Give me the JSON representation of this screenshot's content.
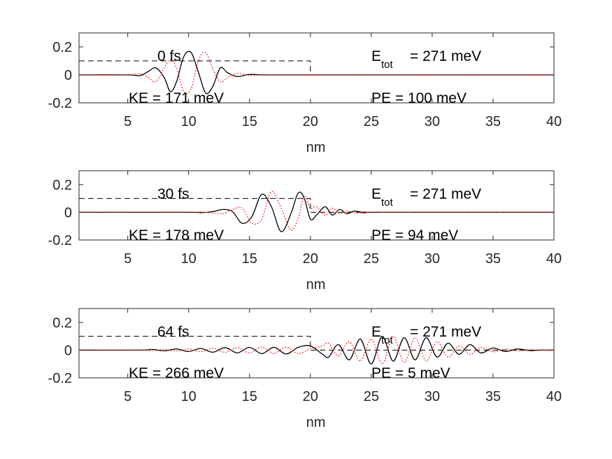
{
  "chart_data": [
    {
      "type": "line",
      "xlabel": "nm",
      "xlim": [
        1,
        40
      ],
      "ylim": [
        -0.2,
        0.3
      ],
      "xticks": [
        5,
        10,
        15,
        20,
        25,
        30,
        35,
        40
      ],
      "yticks": [
        0.2,
        0,
        -0.2
      ],
      "xtick_labels": [
        "5",
        "10",
        "15",
        "20",
        "25",
        "30",
        "35",
        "40"
      ],
      "ytick_labels": [
        "0.2",
        "0",
        "-0.2"
      ],
      "annotations": {
        "time": "0 fs",
        "etot_main": "E",
        "etot_sub": "tot",
        "etot_value": "=   271 meV",
        "ke": "KE =   171 meV",
        "pe": "PE =   100 meV"
      },
      "potential": {
        "x": [
          1,
          20,
          20,
          40
        ],
        "y": [
          0.1,
          0.1,
          0,
          0
        ]
      },
      "series": [
        {
          "style": "solid-black",
          "x": [
            1,
            5,
            6,
            6.7,
            7.3,
            8,
            8.5,
            9,
            9.6,
            10.2,
            10.8,
            11.4,
            12,
            12.6,
            13.2,
            14,
            15,
            16,
            17,
            20,
            40
          ],
          "y": [
            0,
            0,
            -0.005,
            0.025,
            0.05,
            -0.02,
            -0.12,
            -0.05,
            0.13,
            0.16,
            0.02,
            -0.13,
            -0.08,
            0.05,
            0.015,
            -0.012,
            0.003,
            0,
            0,
            0,
            0
          ]
        },
        {
          "style": "dotted-red",
          "x": [
            1,
            5,
            6,
            6.7,
            7.3,
            8,
            8.5,
            9,
            9.6,
            10.2,
            10.8,
            11.4,
            12,
            12.6,
            13.2,
            14,
            15,
            16,
            17,
            20,
            40
          ],
          "y": [
            0,
            0,
            0.008,
            -0.02,
            -0.05,
            0.05,
            0.11,
            0.05,
            -0.12,
            -0.1,
            0.1,
            0.16,
            0.04,
            -0.05,
            -0.02,
            0.01,
            -0.003,
            0,
            0,
            0,
            0
          ]
        }
      ]
    },
    {
      "type": "line",
      "xlabel": "nm",
      "xlim": [
        1,
        40
      ],
      "ylim": [
        -0.2,
        0.3
      ],
      "xticks": [
        5,
        10,
        15,
        20,
        25,
        30,
        35,
        40
      ],
      "yticks": [
        0.2,
        0,
        -0.2
      ],
      "xtick_labels": [
        "5",
        "10",
        "15",
        "20",
        "25",
        "30",
        "35",
        "40"
      ],
      "ytick_labels": [
        "0.2",
        "0",
        "-0.2"
      ],
      "annotations": {
        "time": "30 fs",
        "etot_main": "E",
        "etot_sub": "tot",
        "etot_value": "=   271 meV",
        "ke": "KE =   178 meV",
        "pe": "PE =    94 meV"
      },
      "potential": {
        "x": [
          1,
          20,
          20,
          40
        ],
        "y": [
          0.1,
          0.1,
          0,
          0
        ]
      },
      "series": [
        {
          "style": "solid-black",
          "x": [
            1,
            10,
            11,
            12,
            12.8,
            13.6,
            14.4,
            15.2,
            16,
            16.8,
            17.6,
            18.4,
            19,
            19.5,
            20,
            20.5,
            21.2,
            21.8,
            22.4,
            23,
            23.6,
            24.5,
            25.5,
            40
          ],
          "y": [
            0,
            0,
            -0.003,
            0.005,
            0.02,
            0.005,
            -0.08,
            -0.03,
            0.13,
            0.04,
            -0.14,
            -0.01,
            0.14,
            0.1,
            -0.05,
            -0.02,
            0.04,
            -0.02,
            0.02,
            -0.01,
            0.008,
            -0.003,
            0,
            0
          ]
        },
        {
          "style": "dotted-red",
          "x": [
            1,
            10,
            11,
            12,
            12.8,
            13.6,
            14.4,
            15.2,
            16,
            16.8,
            17.6,
            18.4,
            19,
            19.5,
            20,
            20.5,
            21.2,
            21.8,
            22.4,
            23,
            23.6,
            24.5,
            25.5,
            40
          ],
          "y": [
            0,
            0,
            0.002,
            -0.004,
            -0.01,
            0.02,
            0.03,
            -0.08,
            -0.05,
            0.15,
            0.03,
            -0.13,
            -0.04,
            0.12,
            0.03,
            0.04,
            -0.02,
            0.03,
            -0.01,
            0.01,
            -0.005,
            0.003,
            0,
            0
          ]
        }
      ]
    },
    {
      "type": "line",
      "xlabel": "nm",
      "xlim": [
        1,
        40
      ],
      "ylim": [
        -0.2,
        0.3
      ],
      "xticks": [
        5,
        10,
        15,
        20,
        25,
        30,
        35,
        40
      ],
      "yticks": [
        0.2,
        0,
        -0.2
      ],
      "xtick_labels": [
        "5",
        "10",
        "15",
        "20",
        "25",
        "30",
        "35",
        "40"
      ],
      "ytick_labels": [
        "0.2",
        "0",
        "-0.2"
      ],
      "annotations": {
        "time": "64 fs",
        "etot_main": "E",
        "etot_sub": "tot",
        "etot_value": "=   271 meV",
        "ke": "KE =   266 meV",
        "pe": "PE =     5 meV"
      },
      "potential": {
        "x": [
          1,
          20,
          20,
          40
        ],
        "y": [
          0.1,
          0.1,
          0,
          0
        ]
      },
      "series": [
        {
          "style": "solid-black",
          "x": [
            1,
            6,
            7,
            8,
            9,
            10,
            11,
            12,
            13,
            14,
            15,
            16,
            17,
            18,
            19,
            20,
            21,
            21.5,
            22.3,
            23.2,
            24.1,
            25,
            25.9,
            26.8,
            27.7,
            28.6,
            29.5,
            30.4,
            31.3,
            32.2,
            33.1,
            34,
            35,
            36,
            37,
            38,
            39,
            40
          ],
          "y": [
            0,
            0,
            0.005,
            -0.005,
            0.008,
            -0.01,
            0.012,
            -0.015,
            0.018,
            -0.02,
            0.02,
            -0.025,
            0.02,
            -0.028,
            0.02,
            0.03,
            -0.03,
            -0.05,
            0.04,
            -0.07,
            0.08,
            -0.1,
            0.1,
            -0.08,
            0.09,
            -0.07,
            0.09,
            -0.05,
            0.05,
            -0.03,
            0.04,
            -0.02,
            0.015,
            -0.01,
            0.008,
            -0.003,
            0,
            0
          ]
        },
        {
          "style": "dotted-red",
          "x": [
            1,
            6,
            7,
            8,
            9,
            10,
            11,
            12,
            13,
            14,
            15,
            16,
            17,
            18,
            19,
            20,
            21,
            21.5,
            22.3,
            23.2,
            24.1,
            25,
            25.9,
            26.8,
            27.7,
            28.6,
            29.5,
            30.4,
            31.3,
            32.2,
            33.1,
            34,
            35,
            36,
            37,
            38,
            39,
            40
          ],
          "y": [
            0,
            0,
            -0.004,
            0.006,
            -0.007,
            0.009,
            -0.011,
            0.013,
            -0.016,
            0.018,
            -0.02,
            0.022,
            -0.024,
            0.022,
            -0.025,
            0.01,
            0.03,
            0.05,
            -0.04,
            0.06,
            -0.08,
            0.08,
            -0.1,
            0.1,
            -0.09,
            0.09,
            -0.08,
            0.06,
            -0.05,
            0.03,
            -0.03,
            0.02,
            -0.012,
            0.008,
            -0.005,
            0.002,
            0,
            0
          ]
        }
      ]
    }
  ]
}
